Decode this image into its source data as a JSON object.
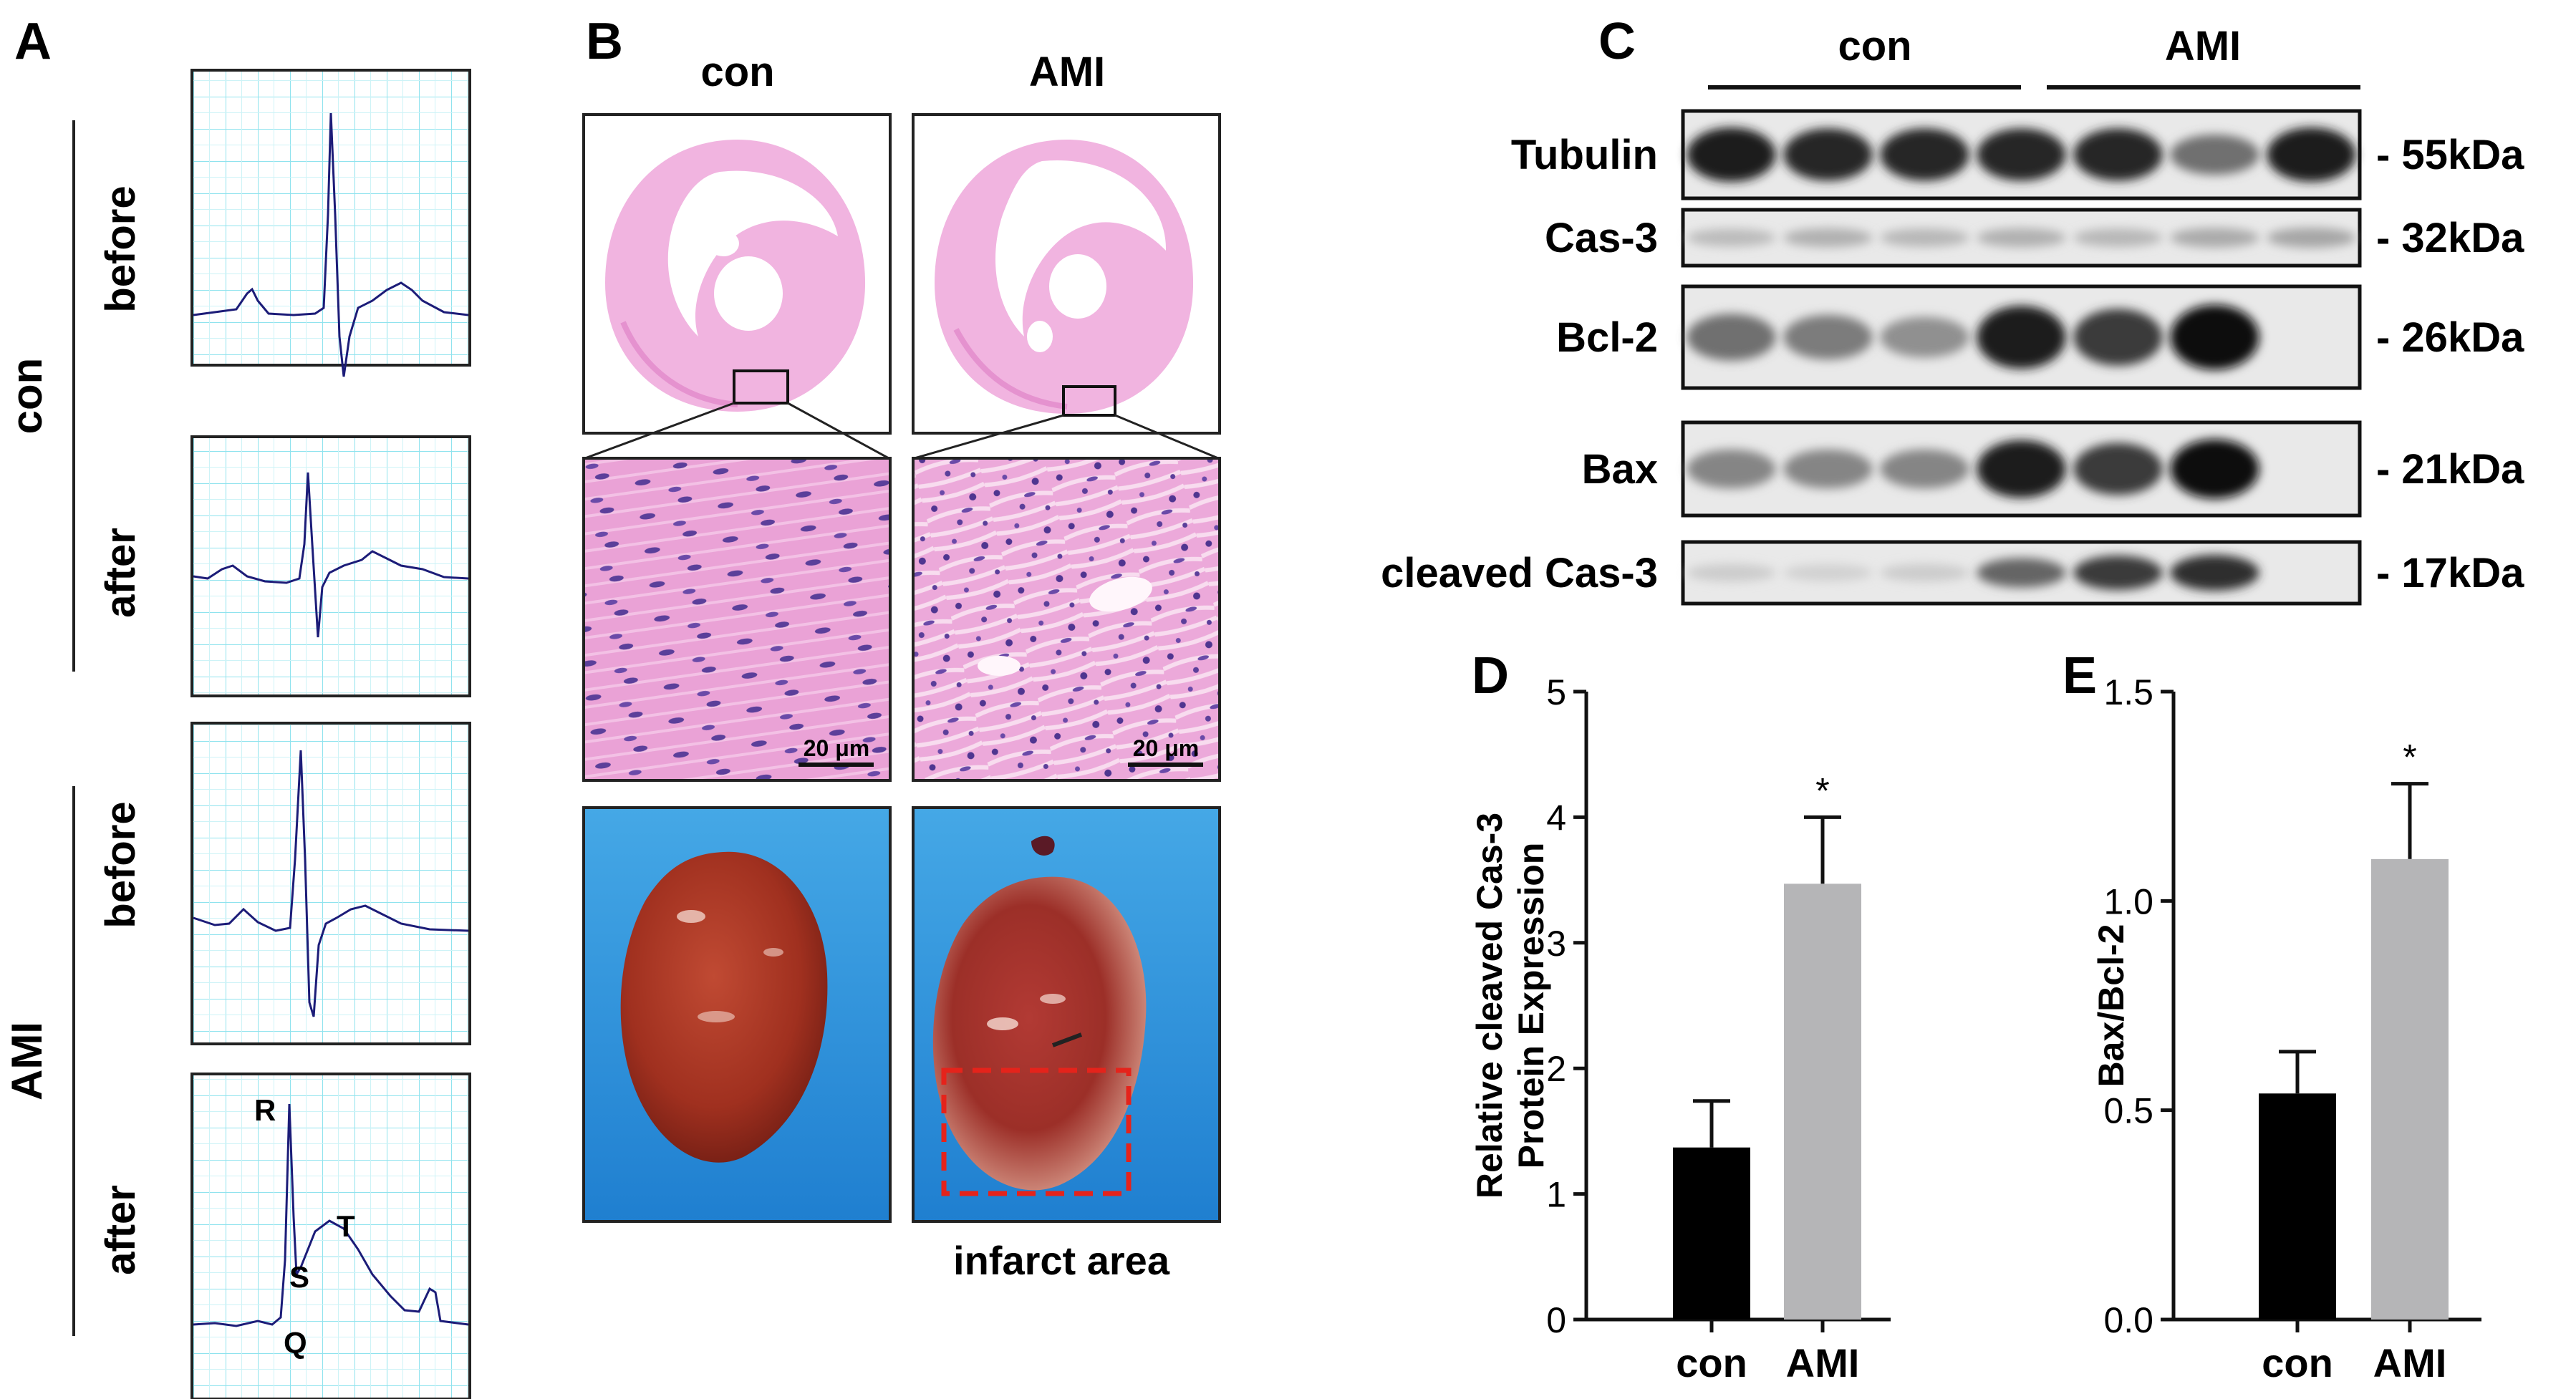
{
  "panels": {
    "A": {
      "letter": "A",
      "group_labels": [
        "con",
        "AMI"
      ],
      "row_labels": [
        "before",
        "after",
        "before",
        "after"
      ],
      "wave_labels": [
        "R",
        "T",
        "S",
        "Q"
      ],
      "colors": {
        "grid": "#8fe3ee",
        "trace": "#1c1c78"
      }
    },
    "B": {
      "letter": "B",
      "col_labels": [
        "con",
        "AMI"
      ],
      "scale_bar_label": "20 μm",
      "infarct_label": "infarct area",
      "colors": {
        "he_stain": "#e89ad0",
        "nuclei": "#5b3f9a",
        "backdrop": "#2f97dd",
        "heart": "#a8311f",
        "infarct_box": "#e5231b"
      }
    },
    "C": {
      "letter": "C",
      "group_labels": [
        "con",
        "AMI"
      ],
      "rows": [
        {
          "name": "Tubulin",
          "kda": "- 55kDa",
          "bands": [
            0.95,
            0.9,
            0.9,
            0.9,
            0.9,
            0.55,
            0.95
          ]
        },
        {
          "name": "Cas-3",
          "kda": "- 32kDa",
          "bands": [
            0.2,
            0.25,
            0.22,
            0.25,
            0.22,
            0.28,
            0.3
          ]
        },
        {
          "name": "Bcl-2",
          "kda": "- 26kDa",
          "bands": [
            0.55,
            0.5,
            0.4,
            0.95,
            0.8,
            1.0,
            0
          ]
        },
        {
          "name": "Bax",
          "kda": "- 21kDa",
          "bands": [
            0.45,
            0.45,
            0.45,
            0.95,
            0.8,
            1.0,
            0
          ]
        },
        {
          "name": "cleaved Cas-3",
          "kda": "- 17kDa",
          "bands": [
            0.12,
            0.1,
            0.12,
            0.6,
            0.8,
            0.85,
            0
          ]
        }
      ]
    }
  },
  "chart_data": [
    {
      "panel": "D",
      "type": "bar",
      "categories": [
        "con",
        "AMI"
      ],
      "values": [
        1.37,
        3.47
      ],
      "errors": [
        0.37,
        0.53
      ],
      "significance": [
        "",
        "*"
      ],
      "ylabel_lines": [
        "Relative cleaved Cas-3",
        "Protein Expression"
      ],
      "ylim": [
        0,
        5
      ],
      "yticks": [
        "0",
        "1",
        "2",
        "3",
        "4",
        "5"
      ],
      "colors": [
        "#000000",
        "#b5b5b7"
      ]
    },
    {
      "panel": "E",
      "type": "bar",
      "categories": [
        "con",
        "AMI"
      ],
      "values": [
        0.54,
        1.1
      ],
      "errors": [
        0.1,
        0.18
      ],
      "significance": [
        "",
        "*"
      ],
      "ylabel_lines": [
        "Bax/Bcl-2"
      ],
      "ylim": [
        0,
        1.5
      ],
      "yticks": [
        "0.0",
        "0.5",
        "1.0",
        "1.5"
      ],
      "colors": [
        "#000000",
        "#b5b5b7"
      ]
    }
  ]
}
